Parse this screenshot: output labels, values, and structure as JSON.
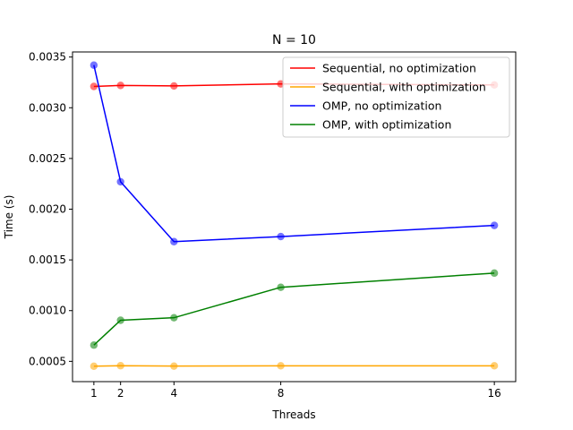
{
  "chart_data": {
    "type": "line",
    "title": "N = 10",
    "xlabel": "Threads",
    "ylabel": "Time (s)",
    "x": [
      1,
      2,
      4,
      8,
      16
    ],
    "xticks": [
      "1",
      "2",
      "4",
      "8",
      "16"
    ],
    "xlim": [
      0.2,
      16.8
    ],
    "ylim": [
      0.0003,
      0.00355
    ],
    "yticks": [
      0.0005,
      0.001,
      0.0015,
      0.002,
      0.0025,
      0.003,
      0.0035
    ],
    "ytick_labels": [
      "0.0005",
      "0.0010",
      "0.0015",
      "0.0020",
      "0.0025",
      "0.0030",
      "0.0035"
    ],
    "grid": false,
    "legend_position": "top-right",
    "series": [
      {
        "name": "Sequential, no optimization",
        "color": "#ff0000",
        "values": [
          0.00321,
          0.00322,
          0.003215,
          0.003235,
          0.003225
        ]
      },
      {
        "name": "Sequential, with optimization",
        "color": "#ffa500",
        "values": [
          0.000452,
          0.000457,
          0.000453,
          0.000456,
          0.000456
        ]
      },
      {
        "name": "OMP, no optimization",
        "color": "#0000ff",
        "values": [
          0.00342,
          0.00227,
          0.00168,
          0.00173,
          0.00184
        ]
      },
      {
        "name": "OMP, with optimization",
        "color": "#008000",
        "values": [
          0.00066,
          0.000905,
          0.00093,
          0.00123,
          0.00137
        ]
      }
    ]
  }
}
